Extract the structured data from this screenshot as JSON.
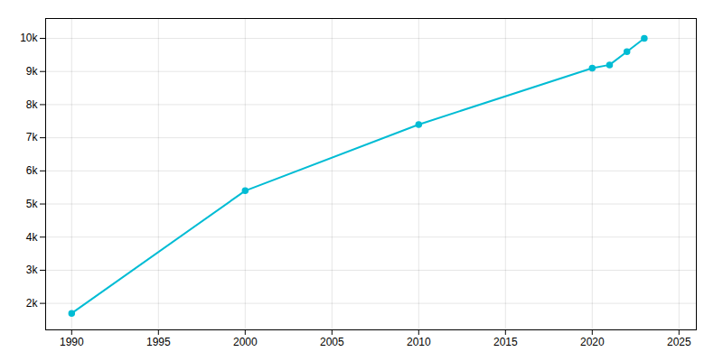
{
  "chart_data": {
    "type": "line",
    "x": [
      1990,
      2000,
      2010,
      2020,
      2021,
      2022,
      2023
    ],
    "values": [
      1700,
      5400,
      7400,
      9100,
      9200,
      9600,
      10000
    ],
    "color": "#00BCD4",
    "marker": "circle",
    "xlim": [
      1988.5,
      2026
    ],
    "ylim": [
      1200,
      10600
    ],
    "xticks": [
      1990,
      1995,
      2000,
      2005,
      2010,
      2015,
      2020,
      2025
    ],
    "yticks": [
      {
        "value": 2000,
        "label": "2k"
      },
      {
        "value": 3000,
        "label": "3k"
      },
      {
        "value": 4000,
        "label": "4k"
      },
      {
        "value": 5000,
        "label": "5k"
      },
      {
        "value": 6000,
        "label": "6k"
      },
      {
        "value": 7000,
        "label": "7k"
      },
      {
        "value": 8000,
        "label": "8k"
      },
      {
        "value": 9000,
        "label": "9k"
      },
      {
        "value": 10000,
        "label": "10k"
      }
    ],
    "grid": true
  }
}
